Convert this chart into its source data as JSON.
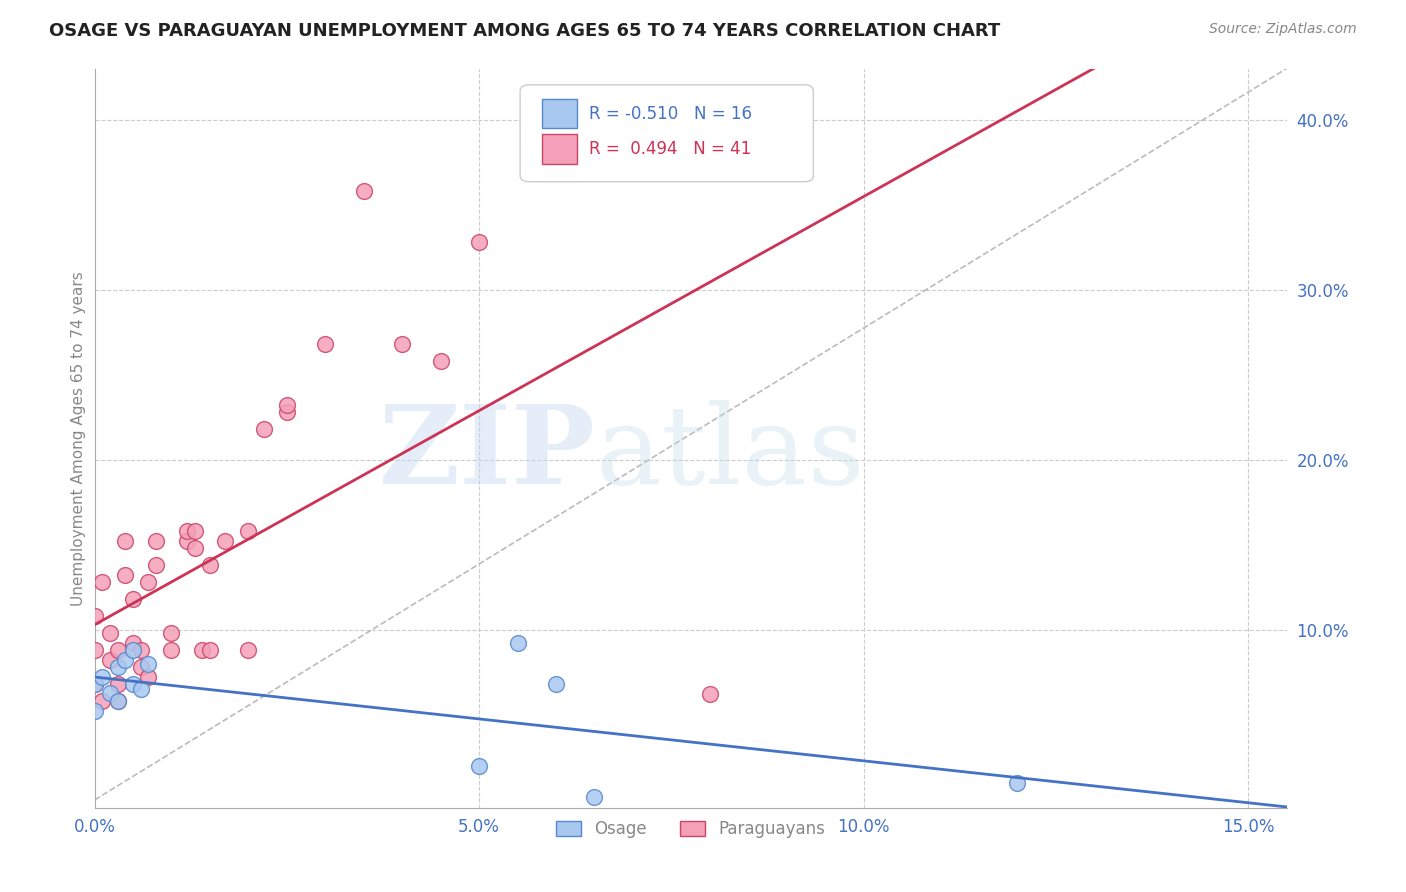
{
  "title": "OSAGE VS PARAGUAYAN UNEMPLOYMENT AMONG AGES 65 TO 74 YEARS CORRELATION CHART",
  "source": "Source: ZipAtlas.com",
  "ylabel": "Unemployment Among Ages 65 to 74 years",
  "osage_R": -0.51,
  "osage_N": 16,
  "paraguayan_R": 0.494,
  "paraguayan_N": 41,
  "osage_color": "#a8c8f0",
  "paraguayan_color": "#f4a0b8",
  "osage_edge_color": "#5588cc",
  "paraguayan_edge_color": "#cc4466",
  "osage_trend_color": "#4472c4",
  "paraguayan_trend_color": "#cc3355",
  "diagonal_color": "#bbbbbb",
  "xlim": [
    0.0,
    0.155
  ],
  "ylim": [
    -0.005,
    0.43
  ],
  "xticks": [
    0.0,
    0.05,
    0.1,
    0.15
  ],
  "xtick_labels": [
    "0.0%",
    "5.0%",
    "10.0%",
    "15.0%"
  ],
  "ytick_vals": [
    0.1,
    0.2,
    0.3,
    0.4
  ],
  "ytick_right_labels": [
    "10.0%",
    "20.0%",
    "30.0%",
    "40.0%"
  ],
  "osage_x": [
    0.0,
    0.0,
    0.001,
    0.002,
    0.003,
    0.003,
    0.004,
    0.005,
    0.005,
    0.006,
    0.007,
    0.05,
    0.055,
    0.06,
    0.065,
    0.12
  ],
  "osage_y": [
    0.068,
    0.052,
    0.072,
    0.063,
    0.058,
    0.078,
    0.082,
    0.068,
    0.088,
    0.065,
    0.08,
    0.02,
    0.092,
    0.068,
    0.002,
    0.01
  ],
  "paraguayan_x": [
    0.0,
    0.0,
    0.0,
    0.001,
    0.001,
    0.002,
    0.002,
    0.003,
    0.003,
    0.003,
    0.004,
    0.004,
    0.005,
    0.005,
    0.006,
    0.006,
    0.007,
    0.007,
    0.008,
    0.008,
    0.01,
    0.01,
    0.012,
    0.012,
    0.013,
    0.013,
    0.014,
    0.015,
    0.015,
    0.017,
    0.02,
    0.02,
    0.022,
    0.025,
    0.025,
    0.03,
    0.035,
    0.04,
    0.045,
    0.05,
    0.08
  ],
  "paraguayan_y": [
    0.068,
    0.088,
    0.108,
    0.058,
    0.128,
    0.082,
    0.098,
    0.058,
    0.068,
    0.088,
    0.132,
    0.152,
    0.092,
    0.118,
    0.078,
    0.088,
    0.072,
    0.128,
    0.138,
    0.152,
    0.088,
    0.098,
    0.152,
    0.158,
    0.148,
    0.158,
    0.088,
    0.138,
    0.088,
    0.152,
    0.158,
    0.088,
    0.218,
    0.228,
    0.232,
    0.268,
    0.358,
    0.268,
    0.258,
    0.328,
    0.062
  ]
}
